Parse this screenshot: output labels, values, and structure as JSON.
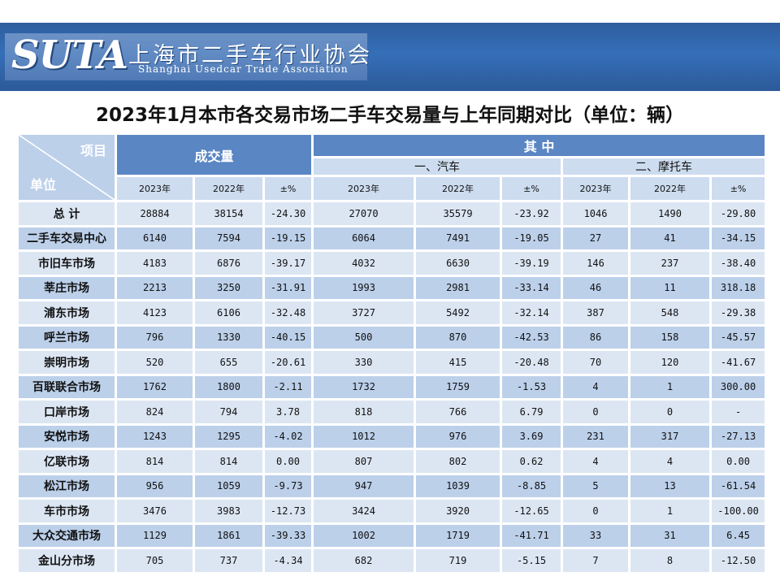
{
  "header": {
    "logo_text": "SUTA",
    "org_name_cn": "上海市二手车行业协会",
    "org_name_en": "Shanghai Usedcar Trade Association"
  },
  "title": "2023年1月本市各交易市场二手车交易量与上年同期对比（单位：辆）",
  "table": {
    "corner_item": "项目",
    "corner_unit": "单位",
    "group_total": "成交量",
    "group_of_which": "其  中",
    "sub_car": "一、汽车",
    "sub_moto": "二、摩托车",
    "col_headers": [
      "2023年",
      "2022年",
      "±%",
      "2023年",
      "2022年",
      "±%",
      "2023年",
      "2022年",
      "±%"
    ],
    "rows": [
      {
        "name": "总  计",
        "cells": [
          "28884",
          "38154",
          "-24.30",
          "27070",
          "35579",
          "-23.92",
          "1046",
          "1490",
          "-29.80"
        ]
      },
      {
        "name": "二手车交易中心",
        "cells": [
          "6140",
          "7594",
          "-19.15",
          "6064",
          "7491",
          "-19.05",
          "27",
          "41",
          "-34.15"
        ]
      },
      {
        "name": "市旧车市场",
        "cells": [
          "4183",
          "6876",
          "-39.17",
          "4032",
          "6630",
          "-39.19",
          "146",
          "237",
          "-38.40"
        ]
      },
      {
        "name": "莘庄市场",
        "cells": [
          "2213",
          "3250",
          "-31.91",
          "1993",
          "2981",
          "-33.14",
          "46",
          "11",
          "318.18"
        ]
      },
      {
        "name": "浦东市场",
        "cells": [
          "4123",
          "6106",
          "-32.48",
          "3727",
          "5492",
          "-32.14",
          "387",
          "548",
          "-29.38"
        ]
      },
      {
        "name": "呼兰市场",
        "cells": [
          "796",
          "1330",
          "-40.15",
          "500",
          "870",
          "-42.53",
          "86",
          "158",
          "-45.57"
        ]
      },
      {
        "name": "崇明市场",
        "cells": [
          "520",
          "655",
          "-20.61",
          "330",
          "415",
          "-20.48",
          "70",
          "120",
          "-41.67"
        ]
      },
      {
        "name": "百联联合市场",
        "cells": [
          "1762",
          "1800",
          "-2.11",
          "1732",
          "1759",
          "-1.53",
          "4",
          "1",
          "300.00"
        ]
      },
      {
        "name": "口岸市场",
        "cells": [
          "824",
          "794",
          "3.78",
          "818",
          "766",
          "6.79",
          "0",
          "0",
          "-"
        ]
      },
      {
        "name": "安悦市场",
        "cells": [
          "1243",
          "1295",
          "-4.02",
          "1012",
          "976",
          "3.69",
          "231",
          "317",
          "-27.13"
        ]
      },
      {
        "name": "亿联市场",
        "cells": [
          "814",
          "814",
          "0.00",
          "807",
          "802",
          "0.62",
          "4",
          "4",
          "0.00"
        ]
      },
      {
        "name": "松江市场",
        "cells": [
          "956",
          "1059",
          "-9.73",
          "947",
          "1039",
          "-8.85",
          "5",
          "13",
          "-61.54"
        ]
      },
      {
        "name": "车市市场",
        "cells": [
          "3476",
          "3983",
          "-12.73",
          "3424",
          "3920",
          "-12.65",
          "0",
          "1",
          "-100.00"
        ]
      },
      {
        "name": "大众交通市场",
        "cells": [
          "1129",
          "1861",
          "-39.33",
          "1002",
          "1719",
          "-41.71",
          "33",
          "31",
          "6.45"
        ]
      },
      {
        "name": "金山分市场",
        "cells": [
          "705",
          "737",
          "-4.34",
          "682",
          "719",
          "-5.15",
          "7",
          "8",
          "-12.50"
        ]
      }
    ]
  }
}
